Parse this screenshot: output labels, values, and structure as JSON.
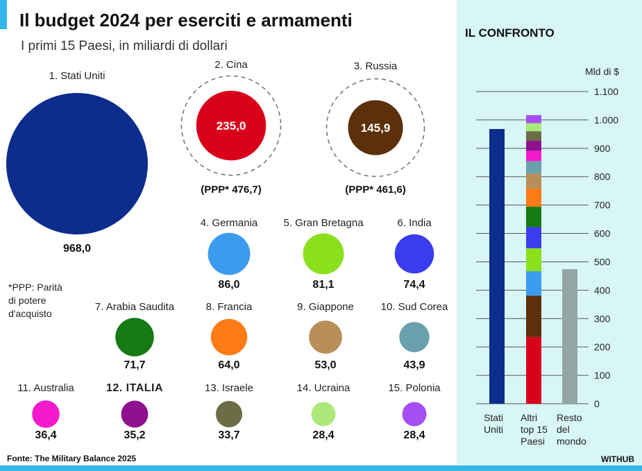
{
  "header": {
    "title": "Il budget 2024 per eserciti e armamenti",
    "subtitle": "I primi 15 Paesi, in miliardi di dollari"
  },
  "colors": {
    "accent": "#35b6e8",
    "panel_bg": "#d8f6f6"
  },
  "footnote": {
    "line1": "*PPP: Parità",
    "line2": "di potere",
    "line3": "d'acquisto"
  },
  "source": "Fonte: The Military Balance 2025",
  "brand": "WITHUB",
  "chart_data": [
    {
      "type": "bubble",
      "title": "Il budget 2024 per eserciti e armamenti",
      "subtitle": "I primi 15 Paesi, in miliardi di dollari",
      "countries": [
        {
          "rank_label": "1. Stati Uniti",
          "value": 968.0,
          "value_label": "968,0",
          "color": "#0c2d8c"
        },
        {
          "rank_label": "2. Cina",
          "value": 235.0,
          "value_label": "235,0",
          "color": "#d9001b",
          "ppp_label": "(PPP* 476,7)",
          "ppp": 476.7
        },
        {
          "rank_label": "3. Russia",
          "value": 145.9,
          "value_label": "145,9",
          "color": "#5c300a",
          "ppp_label": "(PPP* 461,6)",
          "ppp": 461.6
        },
        {
          "rank_label": "4. Germania",
          "value": 86.0,
          "value_label": "86,0",
          "color": "#3d9bef"
        },
        {
          "rank_label": "5. Gran Bretagna",
          "value": 81.1,
          "value_label": "81,1",
          "color": "#8be01e"
        },
        {
          "rank_label": "6. India",
          "value": 74.4,
          "value_label": "74,4",
          "color": "#3b3cf0"
        },
        {
          "rank_label": "7. Arabia Saudita",
          "value": 71.7,
          "value_label": "71,7",
          "color": "#167a14"
        },
        {
          "rank_label": "8. Francia",
          "value": 64.0,
          "value_label": "64,0",
          "color": "#ff7b16"
        },
        {
          "rank_label": "9. Giappone",
          "value": 53.0,
          "value_label": "53,0",
          "color": "#b98f58"
        },
        {
          "rank_label": "10. Sud Corea",
          "value": 43.9,
          "value_label": "43,9",
          "color": "#6aa0ad"
        },
        {
          "rank_label": "11. Australia",
          "value": 36.4,
          "value_label": "36,4",
          "color": "#f21acb"
        },
        {
          "rank_label": "12. ITALIA",
          "value": 35.2,
          "value_label": "35,2",
          "color": "#8f1190"
        },
        {
          "rank_label": "13. Israele",
          "value": 33.7,
          "value_label": "33,7",
          "color": "#6c6c45"
        },
        {
          "rank_label": "14. Ucraina",
          "value": 28.4,
          "value_label": "28,4",
          "color": "#aae87a"
        },
        {
          "rank_label": "15. Polonia",
          "value": 28.4,
          "value_label": "28,4",
          "color": "#a54ff2"
        }
      ]
    },
    {
      "type": "bar",
      "title": "IL CONFRONTO",
      "ylabel": "Mld di $",
      "ylim": [
        0,
        1100
      ],
      "yticks": [
        0,
        100,
        200,
        300,
        400,
        500,
        600,
        700,
        800,
        900,
        1000,
        1100
      ],
      "ytick_labels": [
        "0",
        "100",
        "200",
        "300",
        "400",
        "500",
        "600",
        "700",
        "800",
        "900",
        "1.000",
        "1.100"
      ],
      "categories": [
        {
          "lines": [
            "Stati",
            "Uniti"
          ],
          "value": 968,
          "color": "#0c2d8c"
        },
        {
          "lines": [
            "Altri",
            "top 15",
            "Paesi"
          ],
          "stacked": true,
          "value": 1016.8
        },
        {
          "lines": [
            "Resto",
            "del",
            "mondo"
          ],
          "value": 474,
          "color": "#93a6a6"
        }
      ]
    }
  ],
  "confronto": {
    "title": "IL CONFRONTO",
    "unit": "Mld di $"
  }
}
